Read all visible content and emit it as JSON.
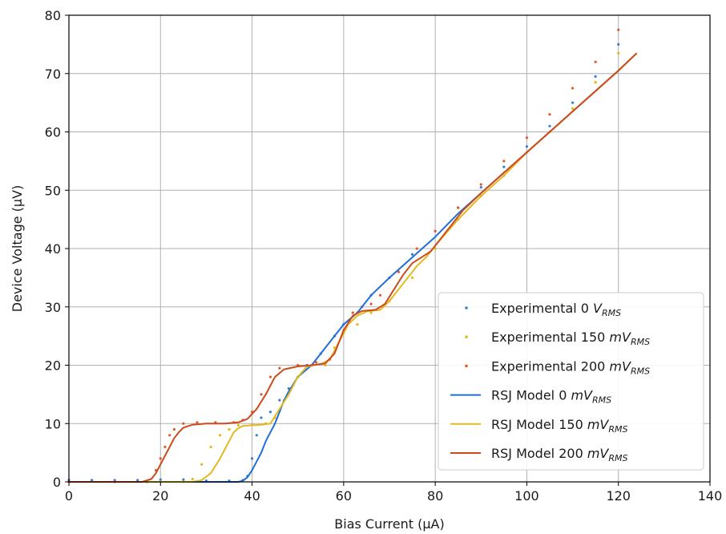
{
  "chart_data": {
    "type": "line",
    "xlabel": "Bias Current (μA)",
    "ylabel": "Device Voltage (μV)",
    "xlim": [
      0,
      140
    ],
    "ylim": [
      0,
      80
    ],
    "xticks": [
      0,
      20,
      40,
      60,
      80,
      100,
      120,
      140
    ],
    "yticks": [
      0,
      10,
      20,
      30,
      40,
      50,
      60,
      70,
      80
    ],
    "grid": true,
    "legend_position": "lower-right",
    "series": [
      {
        "name": "Experimental 0 V_RMS",
        "label_main": "Experimental 0 ",
        "label_unit": "V",
        "label_sub": "RMS",
        "style": "dotted",
        "color": "#3a7fd5",
        "points": [
          [
            0,
            0.3
          ],
          [
            5,
            0.3
          ],
          [
            10,
            0.3
          ],
          [
            15,
            0.3
          ],
          [
            20,
            0.4
          ],
          [
            25,
            0.4
          ],
          [
            30,
            0.2
          ],
          [
            35,
            0.2
          ],
          [
            38,
            0.3
          ],
          [
            39,
            1
          ],
          [
            40,
            4
          ],
          [
            41,
            8
          ],
          [
            42,
            11
          ],
          [
            44,
            12
          ],
          [
            46,
            14
          ],
          [
            48,
            16
          ],
          [
            50,
            18
          ],
          [
            52,
            20
          ],
          [
            55,
            22
          ],
          [
            58,
            25
          ],
          [
            60,
            27
          ],
          [
            63,
            29
          ],
          [
            66,
            32
          ],
          [
            70,
            35
          ],
          [
            75,
            39
          ],
          [
            80,
            43
          ],
          [
            85,
            47
          ],
          [
            90,
            50.5
          ],
          [
            95,
            54
          ],
          [
            100,
            57.5
          ],
          [
            105,
            61
          ],
          [
            110,
            65
          ],
          [
            115,
            69.5
          ],
          [
            120,
            75
          ]
        ]
      },
      {
        "name": "Experimental 150 mV_RMS",
        "label_main": "Experimental 150 ",
        "label_unit": "mV",
        "label_sub": "RMS",
        "style": "dotted",
        "color": "#e0b91a",
        "points": [
          [
            0,
            0
          ],
          [
            10,
            0
          ],
          [
            20,
            0
          ],
          [
            25,
            0
          ],
          [
            27,
            0.5
          ],
          [
            29,
            3
          ],
          [
            31,
            6
          ],
          [
            33,
            8
          ],
          [
            35,
            9
          ],
          [
            37,
            9.7
          ],
          [
            40,
            9.8
          ],
          [
            43,
            10
          ],
          [
            45,
            11
          ],
          [
            47,
            14
          ],
          [
            50,
            18
          ],
          [
            53,
            20
          ],
          [
            56,
            20
          ],
          [
            58,
            23
          ],
          [
            60,
            25.5
          ],
          [
            63,
            27
          ],
          [
            66,
            29
          ],
          [
            70,
            31
          ],
          [
            75,
            35
          ],
          [
            80,
            40
          ],
          [
            85,
            45
          ],
          [
            90,
            49
          ],
          [
            95,
            52.5
          ],
          [
            100,
            56.5
          ],
          [
            105,
            60
          ],
          [
            110,
            64
          ],
          [
            115,
            68.5
          ],
          [
            120,
            73.5
          ]
        ]
      },
      {
        "name": "Experimental 200 mV_RMS",
        "label_main": "Experimental 200 ",
        "label_unit": "mV",
        "label_sub": "RMS",
        "style": "dotted",
        "color": "#e05a30",
        "points": [
          [
            0,
            0
          ],
          [
            10,
            0
          ],
          [
            17,
            0
          ],
          [
            19,
            2
          ],
          [
            20,
            4
          ],
          [
            21,
            6
          ],
          [
            22,
            8
          ],
          [
            23,
            9
          ],
          [
            25,
            10
          ],
          [
            28,
            10.2
          ],
          [
            32,
            10.2
          ],
          [
            36,
            10.2
          ],
          [
            38,
            10.6
          ],
          [
            40,
            12
          ],
          [
            42,
            15
          ],
          [
            44,
            18
          ],
          [
            46,
            19.5
          ],
          [
            50,
            20
          ],
          [
            54,
            20.5
          ],
          [
            57,
            21
          ],
          [
            60,
            26
          ],
          [
            62,
            29
          ],
          [
            64,
            30
          ],
          [
            66,
            30.5
          ],
          [
            68,
            32
          ],
          [
            72,
            36
          ],
          [
            76,
            40
          ],
          [
            80,
            43
          ],
          [
            85,
            47
          ],
          [
            90,
            51
          ],
          [
            95,
            55
          ],
          [
            100,
            59
          ],
          [
            105,
            63
          ],
          [
            110,
            67.5
          ],
          [
            115,
            72
          ],
          [
            120,
            77.5
          ]
        ]
      },
      {
        "name": "RSJ Model 0 mV_RMS",
        "label_main": "RSJ Model 0 ",
        "label_unit": "mV",
        "label_sub": "RMS",
        "style": "solid",
        "color": "#1f6fd6",
        "points": [
          [
            0,
            0
          ],
          [
            10,
            0
          ],
          [
            20,
            0
          ],
          [
            30,
            0
          ],
          [
            37,
            0
          ],
          [
            38,
            0.2
          ],
          [
            39,
            0.8
          ],
          [
            40,
            2
          ],
          [
            41,
            3.5
          ],
          [
            42,
            5
          ],
          [
            43,
            7
          ],
          [
            44,
            8.5
          ],
          [
            45,
            10
          ],
          [
            46,
            12
          ],
          [
            47,
            14
          ],
          [
            48,
            15.5
          ],
          [
            50,
            18
          ],
          [
            53,
            20
          ],
          [
            55,
            22
          ],
          [
            58,
            25
          ],
          [
            60,
            27
          ],
          [
            63,
            29
          ],
          [
            66,
            32
          ],
          [
            70,
            35
          ],
          [
            75,
            38.5
          ],
          [
            80,
            42
          ],
          [
            85,
            46
          ],
          [
            90,
            49.5
          ],
          [
            95,
            53
          ],
          [
            100,
            56.5
          ],
          [
            105,
            60
          ],
          [
            110,
            63.5
          ],
          [
            115,
            67
          ],
          [
            120,
            70.5
          ],
          [
            124,
            73.5
          ]
        ]
      },
      {
        "name": "RSJ Model 150 mV_RMS",
        "label_main": "RSJ Model 150 ",
        "label_unit": "mV",
        "label_sub": "RMS",
        "style": "solid",
        "color": "#e3b820",
        "points": [
          [
            0,
            0
          ],
          [
            10,
            0
          ],
          [
            20,
            0
          ],
          [
            27,
            0
          ],
          [
            29,
            0.3
          ],
          [
            31,
            1.5
          ],
          [
            33,
            4
          ],
          [
            35,
            7
          ],
          [
            36,
            8.5
          ],
          [
            37,
            9.2
          ],
          [
            38,
            9.6
          ],
          [
            40,
            9.7
          ],
          [
            42,
            9.8
          ],
          [
            44,
            10
          ],
          [
            46,
            12.5
          ],
          [
            48,
            15
          ],
          [
            50,
            18
          ],
          [
            52,
            19.8
          ],
          [
            55,
            20.2
          ],
          [
            57,
            21
          ],
          [
            59,
            24
          ],
          [
            61,
            27
          ],
          [
            63,
            28.5
          ],
          [
            65,
            29.2
          ],
          [
            68,
            29.5
          ],
          [
            70,
            31
          ],
          [
            73,
            34
          ],
          [
            76,
            37
          ],
          [
            78,
            38.5
          ],
          [
            80,
            40.5
          ],
          [
            85,
            45
          ],
          [
            90,
            49
          ],
          [
            95,
            52.5
          ],
          [
            100,
            56.5
          ],
          [
            105,
            60
          ],
          [
            110,
            63.5
          ],
          [
            115,
            67
          ],
          [
            120,
            70.5
          ],
          [
            124,
            73.5
          ]
        ]
      },
      {
        "name": "RSJ Model 200 mV_RMS",
        "label_main": "RSJ Model 200 ",
        "label_unit": "mV",
        "label_sub": "RMS",
        "style": "solid",
        "color": "#cc4a1c",
        "points": [
          [
            0,
            0
          ],
          [
            10,
            0
          ],
          [
            16,
            0
          ],
          [
            18,
            0.5
          ],
          [
            19,
            1.5
          ],
          [
            20,
            3
          ],
          [
            21,
            4.5
          ],
          [
            22,
            6
          ],
          [
            23,
            7.5
          ],
          [
            24,
            8.5
          ],
          [
            25,
            9.3
          ],
          [
            27,
            9.8
          ],
          [
            30,
            10
          ],
          [
            34,
            10
          ],
          [
            37,
            10.2
          ],
          [
            39,
            10.8
          ],
          [
            41,
            12.5
          ],
          [
            43,
            15
          ],
          [
            45,
            18
          ],
          [
            47,
            19.3
          ],
          [
            50,
            19.8
          ],
          [
            53,
            20
          ],
          [
            56,
            20.3
          ],
          [
            58,
            22
          ],
          [
            60,
            26
          ],
          [
            62,
            28.5
          ],
          [
            64,
            29.3
          ],
          [
            67,
            29.5
          ],
          [
            69,
            30.5
          ],
          [
            71,
            33
          ],
          [
            73,
            35.5
          ],
          [
            75,
            37.5
          ],
          [
            77,
            38.5
          ],
          [
            79,
            39.5
          ],
          [
            82,
            42.5
          ],
          [
            86,
            46.5
          ],
          [
            90,
            49.5
          ],
          [
            95,
            53
          ],
          [
            100,
            56.5
          ],
          [
            105,
            60
          ],
          [
            110,
            63.5
          ],
          [
            115,
            67
          ],
          [
            120,
            70.5
          ],
          [
            124,
            73.5
          ]
        ]
      }
    ]
  }
}
